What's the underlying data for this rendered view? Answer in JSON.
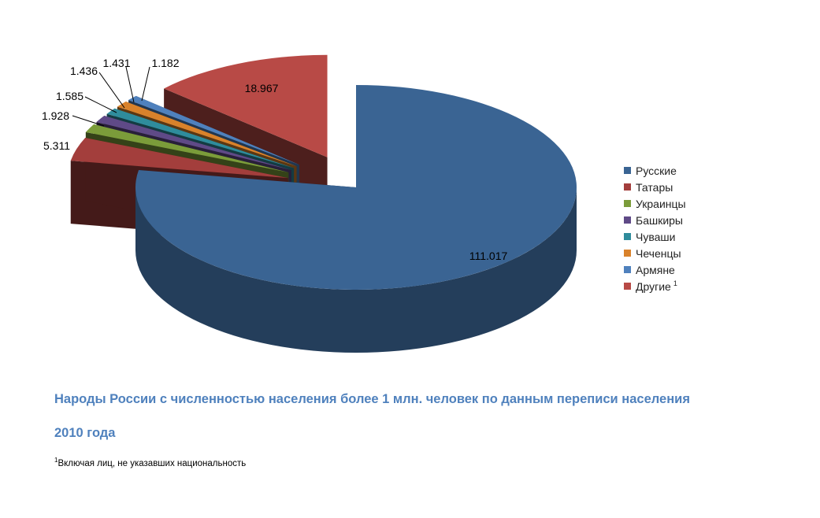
{
  "chart_data": {
    "type": "pie",
    "style": "3d-exploded",
    "categories": [
      "Русские",
      "Татары",
      "Украинцы",
      "Башкиры",
      "Чуваши",
      "Чеченцы",
      "Армяне",
      "Другие"
    ],
    "values": [
      111.017,
      5.311,
      1.928,
      1.585,
      1.436,
      1.431,
      1.182,
      18.967
    ],
    "data_labels": [
      "111.017",
      "5.311",
      "1.928",
      "1.585",
      "1.436",
      "1.431",
      "1.182",
      "18.967"
    ],
    "colors": [
      "#3a6493",
      "#a33e3c",
      "#7b9c3a",
      "#5f4a87",
      "#2f8c9c",
      "#d9822b",
      "#4f81bd",
      "#b84a46"
    ],
    "legend": {
      "position": "right",
      "entries": [
        "Русские",
        "Татары",
        "Украинцы",
        "Башкиры",
        "Чуваши",
        "Чеченцы",
        "Армяне",
        "Другие"
      ],
      "superscripts": [
        "",
        "",
        "",
        "",
        "",
        "",
        "",
        "1"
      ]
    },
    "title_line1": "Народы России с численностью населения более 1 млн. человек по данным переписи населения",
    "title_line2": "2010 года"
  },
  "footnote": {
    "marker": "1",
    "text": "Включая лиц, не указавших национальность"
  }
}
